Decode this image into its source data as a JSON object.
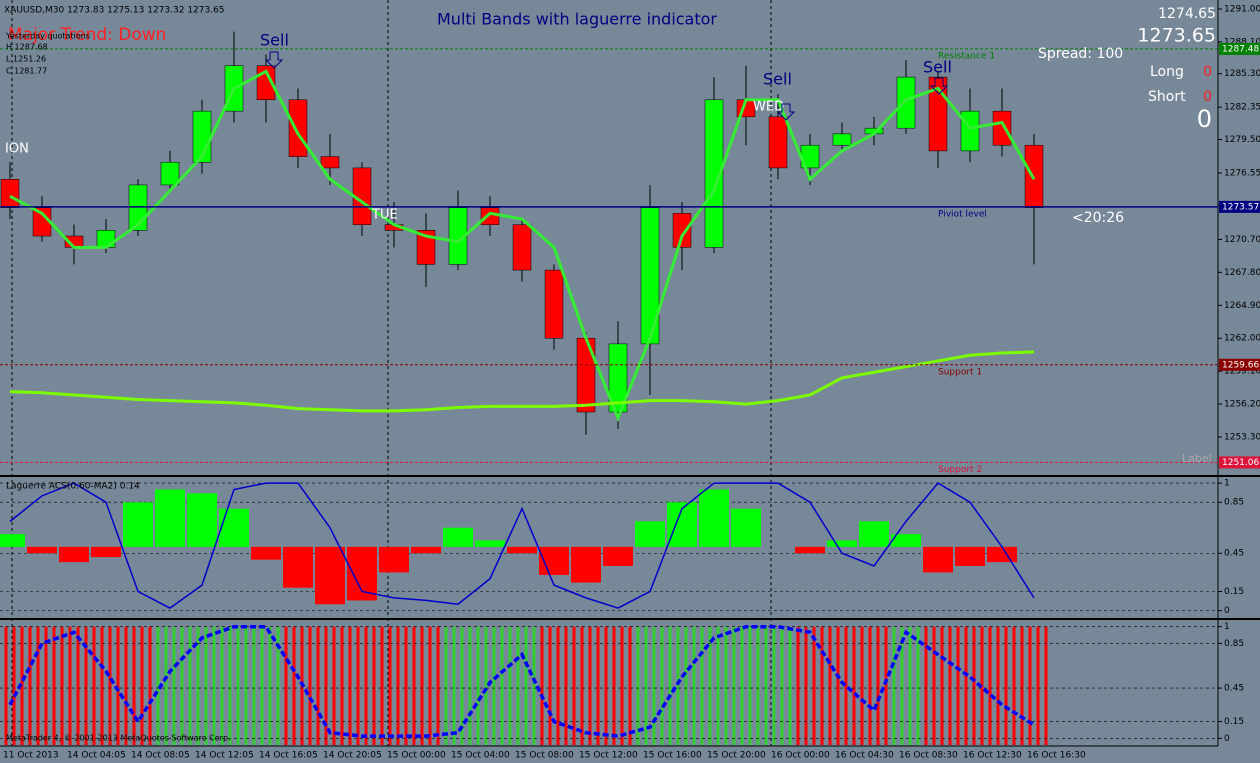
{
  "header": {
    "symbol_line": "XAUUSD,M30  1273.83 1275.13 1273.32 1273.65",
    "trend": "Major Trend: Down",
    "title": "Multi Bands with laguerre indicator"
  },
  "quotes": {
    "title": "Yesterday quotations",
    "high": "H 1287.68",
    "low": "L 1251.26",
    "close": "C 1281.77"
  },
  "panel": {
    "bid": "1274.65",
    "ask": "1273.65",
    "spread": "Spread: 100",
    "long": "Long",
    "long_value": "0",
    "short": "Short",
    "short_value": "0",
    "total": "0",
    "timer": "<20:26",
    "label": "Label"
  },
  "annotations": [
    "ION",
    "Sell",
    "TUE",
    "Sell",
    "WED",
    "Sell"
  ],
  "footer": "MetaTrader 4, © 2001-2013 MetaQuotes Software Corp.",
  "chart_data": [
    {
      "type": "candlestick",
      "categories": [
        "11 Oct 2013",
        null,
        "14 Oct 04:05",
        null,
        "14 Oct 08:05",
        null,
        "14 Oct 12:05",
        null,
        "14 Oct 16:05",
        null,
        "14 Oct 20:05",
        null,
        "15 Oct 00:00",
        null,
        "15 Oct 04:00",
        null,
        "15 Oct 08:00",
        null,
        "15 Oct 12:00",
        null,
        "15 Oct 16:00",
        null,
        "15 Oct 20:00",
        null,
        "16 Oct 00:00",
        null,
        "16 Oct 04:30",
        null,
        "16 Oct 08:30",
        null,
        "16 Oct 12:30",
        null,
        "16 Oct 16:30"
      ],
      "open": [
        1276,
        1273.5,
        1271,
        1270,
        1271.5,
        1275.5,
        1277.5,
        1282,
        1286,
        1283,
        1278,
        1277,
        1272,
        1271.5,
        1268.5,
        1273.5,
        1272,
        1268,
        1262,
        1255.5,
        1261.5,
        1273,
        1270,
        1283,
        1281.5,
        1277,
        1279,
        1280,
        1280.5,
        1285,
        1278.5,
        1282,
        1279
      ],
      "high": [
        1277.5,
        1274.5,
        1272,
        1272.5,
        1276,
        1278.5,
        1283,
        1289,
        1287,
        1284,
        1280,
        1277.5,
        1274,
        1273,
        1275,
        1274.5,
        1272.5,
        1268.5,
        1262.5,
        1263.5,
        1275.5,
        1274,
        1285,
        1286,
        1283.5,
        1280,
        1281,
        1281.5,
        1286.5,
        1285.5,
        1284,
        1284,
        1280
      ],
      "low": [
        1272.5,
        1270.5,
        1268.5,
        1269.5,
        1271,
        1275,
        1276.5,
        1281,
        1281,
        1277,
        1275.5,
        1271,
        1270,
        1266.5,
        1268,
        1271,
        1267,
        1261,
        1253.5,
        1254,
        1257,
        1268,
        1269.5,
        1279,
        1276,
        1275.5,
        1278.5,
        1279,
        1280,
        1277,
        1277.5,
        1278,
        1268.5
      ],
      "close": [
        1273.5,
        1271,
        1270,
        1271.5,
        1275.5,
        1277.5,
        1282,
        1286,
        1283,
        1278,
        1277,
        1272,
        1271.5,
        1268.5,
        1273.5,
        1272,
        1268,
        1262,
        1255.5,
        1261.5,
        1273.5,
        1270,
        1283,
        1281.5,
        1277,
        1279,
        1280,
        1280.5,
        1285,
        1278.5,
        1282,
        1279,
        1273.5
      ],
      "up_color": "#00ff00",
      "down_color": "#ff0000",
      "series": [
        {
          "color": "#33ee33",
          "values": [
            1274.5,
            1273,
            1270,
            1270,
            1272,
            1275,
            1278,
            1284,
            1285.5,
            1280,
            1276,
            1274,
            1272,
            1271,
            1270.5,
            1273,
            1272.5,
            1270,
            1262,
            1255,
            1262,
            1271,
            1275,
            1283,
            1283,
            1276,
            1278.5,
            1280,
            1283,
            1284,
            1280.5,
            1281,
            1276
          ]
        },
        {
          "color": "#7cfc00",
          "values": [
            1257.3,
            1257.2,
            1257,
            1256.8,
            1256.6,
            1256.5,
            1256.4,
            1256.3,
            1256.1,
            1255.8,
            1255.7,
            1255.6,
            1255.6,
            1255.7,
            1255.9,
            1256,
            1256,
            1256,
            1256.1,
            1256.3,
            1256.5,
            1256.5,
            1256.4,
            1256.2,
            1256.5,
            1257,
            1258.5,
            1259,
            1259.5,
            1260,
            1260.5,
            1260.7,
            1260.8
          ]
        }
      ],
      "ylim": [
        1250.04,
        1291.79
      ],
      "yticks": [
        {
          "value": 1291,
          "label": "1291.00"
        },
        {
          "value": 1288.1,
          "label": "1288.10"
        },
        {
          "value": 1285.3,
          "label": "1285.30"
        },
        {
          "value": 1282.35,
          "label": "1282.35"
        },
        {
          "value": 1279.5,
          "label": "1279.50"
        },
        {
          "value": 1276.55,
          "label": "1276.55"
        },
        {
          "value": 1273.7,
          "label": "1273.70"
        },
        {
          "value": 1270.7,
          "label": "1270.70"
        },
        {
          "value": 1267.8,
          "label": "1267.80"
        },
        {
          "value": 1264.9,
          "label": "1264.90"
        },
        {
          "value": 1262,
          "label": "1262.00"
        },
        {
          "value": 1259.1,
          "label": "1259.10"
        },
        {
          "value": 1256.2,
          "label": "1256.20"
        },
        {
          "value": 1253.3,
          "label": "1253.30"
        }
      ],
      "levels": [
        {
          "value": 1287.48,
          "label": "1287.48",
          "name": "Resistance 1",
          "color": "#008000"
        },
        {
          "value": 1273.57,
          "label": "1273.57",
          "name": "Piviot level",
          "color": "#000080"
        },
        {
          "value": 1259.66,
          "label": "1259.66",
          "name": "Support 1",
          "color": "#8b0000"
        },
        {
          "value": 1251.06,
          "label": "1251.06",
          "name": "Support 2",
          "color": "#dc143c"
        }
      ]
    },
    {
      "type": "bar",
      "title": "Laguerre ACS(0.60-MA2) 0.14",
      "baseline": 0.5,
      "up_color": "#00ff00",
      "down_color": "#ff0000",
      "values": [
        0.6,
        0.45,
        0.38,
        0.42,
        0.85,
        0.95,
        0.92,
        0.8,
        0.4,
        0.18,
        0.05,
        0.08,
        0.3,
        0.45,
        0.65,
        0.55,
        0.45,
        0.28,
        0.22,
        0.35,
        0.7,
        0.85,
        0.95,
        0.8,
        0.5,
        0.45,
        0.55,
        0.7,
        0.6,
        0.3,
        0.35,
        0.38,
        0.5
      ],
      "series": [
        {
          "color": "#0000cd",
          "values": [
            0.7,
            0.9,
            1,
            0.85,
            0.15,
            0.02,
            0.2,
            0.95,
            1,
            1,
            0.65,
            0.15,
            0.1,
            0.08,
            0.05,
            0.25,
            0.8,
            0.2,
            0.1,
            0.02,
            0.15,
            0.8,
            1,
            1,
            1,
            0.85,
            0.45,
            0.35,
            0.7,
            1,
            0.85,
            0.5,
            0.1
          ]
        }
      ],
      "ylim": [
        -0.05,
        1.04
      ],
      "yticks": [
        1,
        0.85,
        0.45,
        0.15,
        0
      ]
    },
    {
      "type": "state",
      "bar_colors": [
        "#ff0000",
        "#ff0000",
        "#ff0000",
        "#ff0000",
        "#ff0000",
        "#32cd32",
        "#32cd32",
        "#32cd32",
        "#32cd32",
        "#ff0000",
        "#ff0000",
        "#ff0000",
        "#ff0000",
        "#ff0000",
        "#32cd32",
        "#32cd32",
        "#32cd32",
        "#ff0000",
        "#ff0000",
        "#ff0000",
        "#32cd32",
        "#32cd32",
        "#32cd32",
        "#32cd32",
        "#32cd32",
        "#ff0000",
        "#ff0000",
        "#ff0000",
        "#32cd32",
        "#ff0000",
        "#ff0000",
        "#ff0000",
        "#ff0000"
      ],
      "series": [
        {
          "color": "#0000ff",
          "values": [
            0.3,
            0.85,
            0.95,
            0.6,
            0.15,
            0.6,
            0.9,
            1,
            1,
            0.55,
            0.05,
            0.02,
            0.02,
            0.02,
            0.05,
            0.5,
            0.75,
            0.15,
            0.05,
            0.02,
            0.1,
            0.55,
            0.9,
            1,
            1,
            0.95,
            0.5,
            0.25,
            0.95,
            0.75,
            0.55,
            0.3,
            0.12
          ]
        }
      ],
      "ylim": [
        -0.06,
        1.06
      ],
      "yticks": [
        1,
        0.85,
        0.45,
        0.15,
        0
      ]
    }
  ]
}
